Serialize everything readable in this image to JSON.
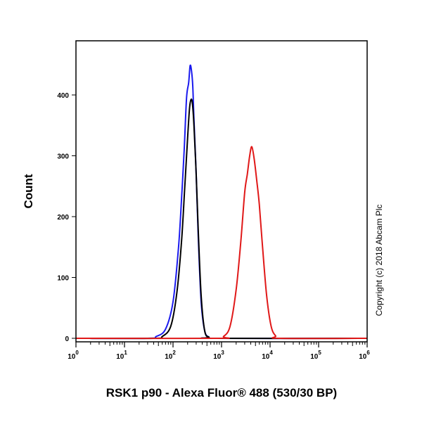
{
  "chart_data": {
    "type": "line",
    "title": "",
    "xlabel": "RSK1 p90 - Alexa Fluor® 488 (530/30 BP)",
    "ylabel": "Count",
    "x_scale": "log",
    "xlim": [
      1,
      1000000
    ],
    "ylim": [
      0,
      490
    ],
    "x_ticks": [
      {
        "base": "10",
        "exp": "0"
      },
      {
        "base": "10",
        "exp": "1"
      },
      {
        "base": "10",
        "exp": "2"
      },
      {
        "base": "10",
        "exp": "3"
      },
      {
        "base": "10",
        "exp": "4"
      },
      {
        "base": "10",
        "exp": "5"
      },
      {
        "base": "10",
        "exp": "6"
      }
    ],
    "y_ticks": [
      "0",
      "100",
      "200",
      "300",
      "400"
    ],
    "grid": false,
    "series": [
      {
        "color": "#1a1aee",
        "x": [
          1,
          30,
          45,
          70,
          100,
          130,
          150,
          170,
          190,
          210,
          225,
          240,
          255,
          270,
          300,
          330,
          380,
          450,
          550,
          700,
          1000000
        ],
        "y": [
          0,
          0,
          3,
          15,
          60,
          150,
          230,
          310,
          395,
          420,
          448,
          440,
          415,
          360,
          270,
          170,
          60,
          12,
          2,
          0,
          0
        ]
      },
      {
        "color": "#000000",
        "x": [
          1,
          40,
          60,
          90,
          120,
          150,
          175,
          200,
          220,
          240,
          255,
          270,
          300,
          330,
          380,
          450,
          550,
          700,
          1000000
        ],
        "y": [
          0,
          0,
          3,
          20,
          75,
          160,
          250,
          330,
          380,
          393,
          380,
          350,
          270,
          180,
          70,
          12,
          2,
          0,
          0
        ]
      },
      {
        "color": "#e01818",
        "x": [
          1,
          800,
          1100,
          1500,
          2000,
          2500,
          3000,
          3400,
          3800,
          4200,
          4700,
          5300,
          6000,
          7000,
          8500,
          10500,
          13000,
          16000,
          1000000
        ],
        "y": [
          0,
          0,
          3,
          20,
          80,
          160,
          240,
          270,
          300,
          315,
          295,
          260,
          220,
          150,
          70,
          20,
          4,
          0,
          0
        ]
      }
    ]
  },
  "copyright": "Copyright (c) 2018 Abcam Plc"
}
